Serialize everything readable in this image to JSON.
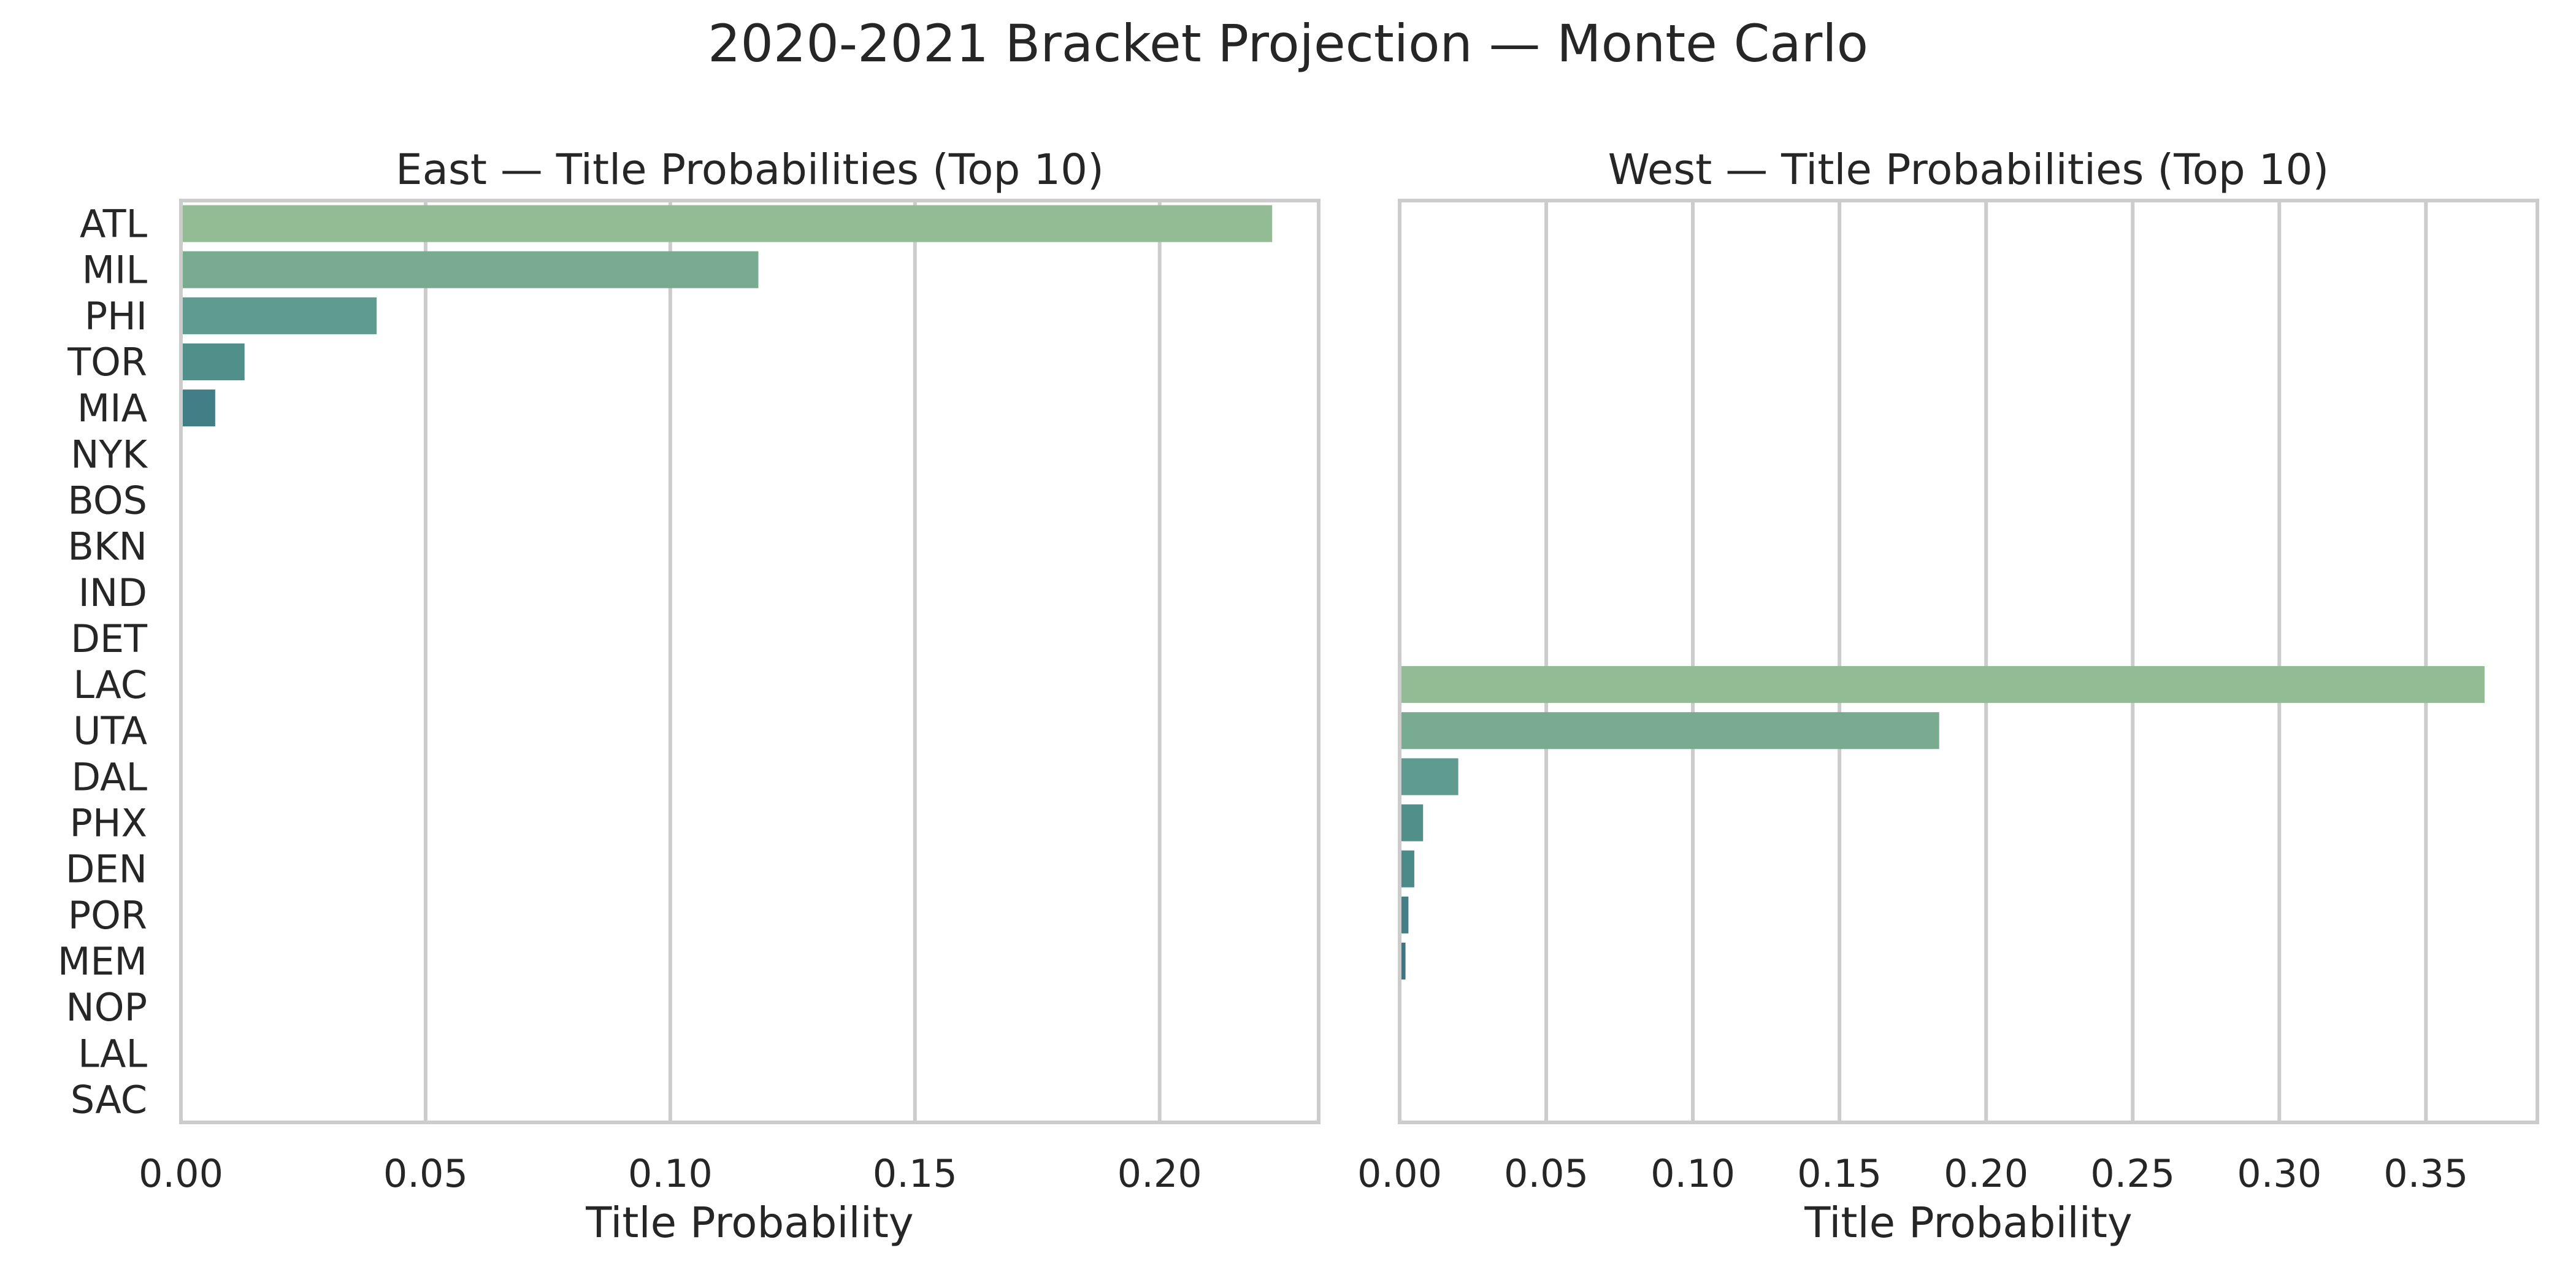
{
  "suptitle": "2020-2021 Bracket Projection — Monte Carlo",
  "chart_data": [
    {
      "type": "bar",
      "orientation": "horizontal",
      "title": "East — Title Probabilities (Top 10)",
      "xlabel": "Title Probability",
      "ylabel": "",
      "xlim": [
        0,
        0.2325
      ],
      "xticks": [
        0.0,
        0.05,
        0.1,
        0.15,
        0.2
      ],
      "xtick_labels": [
        "0.00",
        "0.05",
        "0.10",
        "0.15",
        "0.20"
      ],
      "categories": [
        "ATL",
        "MIL",
        "PHI",
        "TOR",
        "MIA",
        "NYK",
        "BOS",
        "BKN",
        "IND",
        "DET",
        "LAC",
        "UTA",
        "DAL",
        "PHX",
        "DEN",
        "POR",
        "MEM",
        "NOP",
        "LAL",
        "SAC"
      ],
      "values": [
        0.223,
        0.118,
        0.04,
        0.013,
        0.007,
        0,
        0,
        0,
        0,
        0,
        null,
        null,
        null,
        null,
        null,
        null,
        null,
        null,
        null,
        null
      ],
      "colors": [
        "#93bb94",
        "#79ab91",
        "#5f9b8e",
        "#518f8b",
        "#417e85",
        null,
        null,
        null,
        null,
        null,
        null,
        null,
        null,
        null,
        null,
        null,
        null,
        null,
        null,
        null
      ],
      "grid": "vertical",
      "show_category_labels": true
    },
    {
      "type": "bar",
      "orientation": "horizontal",
      "title": "West — Title Probabilities (Top 10)",
      "xlabel": "Title Probability",
      "ylabel": "",
      "xlim": [
        0,
        0.388
      ],
      "xticks": [
        0.0,
        0.05,
        0.1,
        0.15,
        0.2,
        0.25,
        0.3,
        0.35
      ],
      "xtick_labels": [
        "0.00",
        "0.05",
        "0.10",
        "0.15",
        "0.20",
        "0.25",
        "0.30",
        "0.35"
      ],
      "categories": [
        "ATL",
        "MIL",
        "PHI",
        "TOR",
        "MIA",
        "NYK",
        "BOS",
        "BKN",
        "IND",
        "DET",
        "LAC",
        "UTA",
        "DAL",
        "PHX",
        "DEN",
        "POR",
        "MEM",
        "NOP",
        "LAL",
        "SAC"
      ],
      "values": [
        null,
        null,
        null,
        null,
        null,
        null,
        null,
        null,
        null,
        null,
        0.37,
        0.184,
        0.02,
        0.008,
        0.005,
        0.003,
        0.002,
        0,
        0,
        0
      ],
      "colors": [
        null,
        null,
        null,
        null,
        null,
        null,
        null,
        null,
        null,
        null,
        "#93bb94",
        "#79ab91",
        "#5f9b8e",
        "#518f8b",
        "#4a8a89",
        "#447f86",
        "#3d7682",
        null,
        null,
        null
      ],
      "grid": "vertical",
      "show_category_labels": false
    }
  ]
}
